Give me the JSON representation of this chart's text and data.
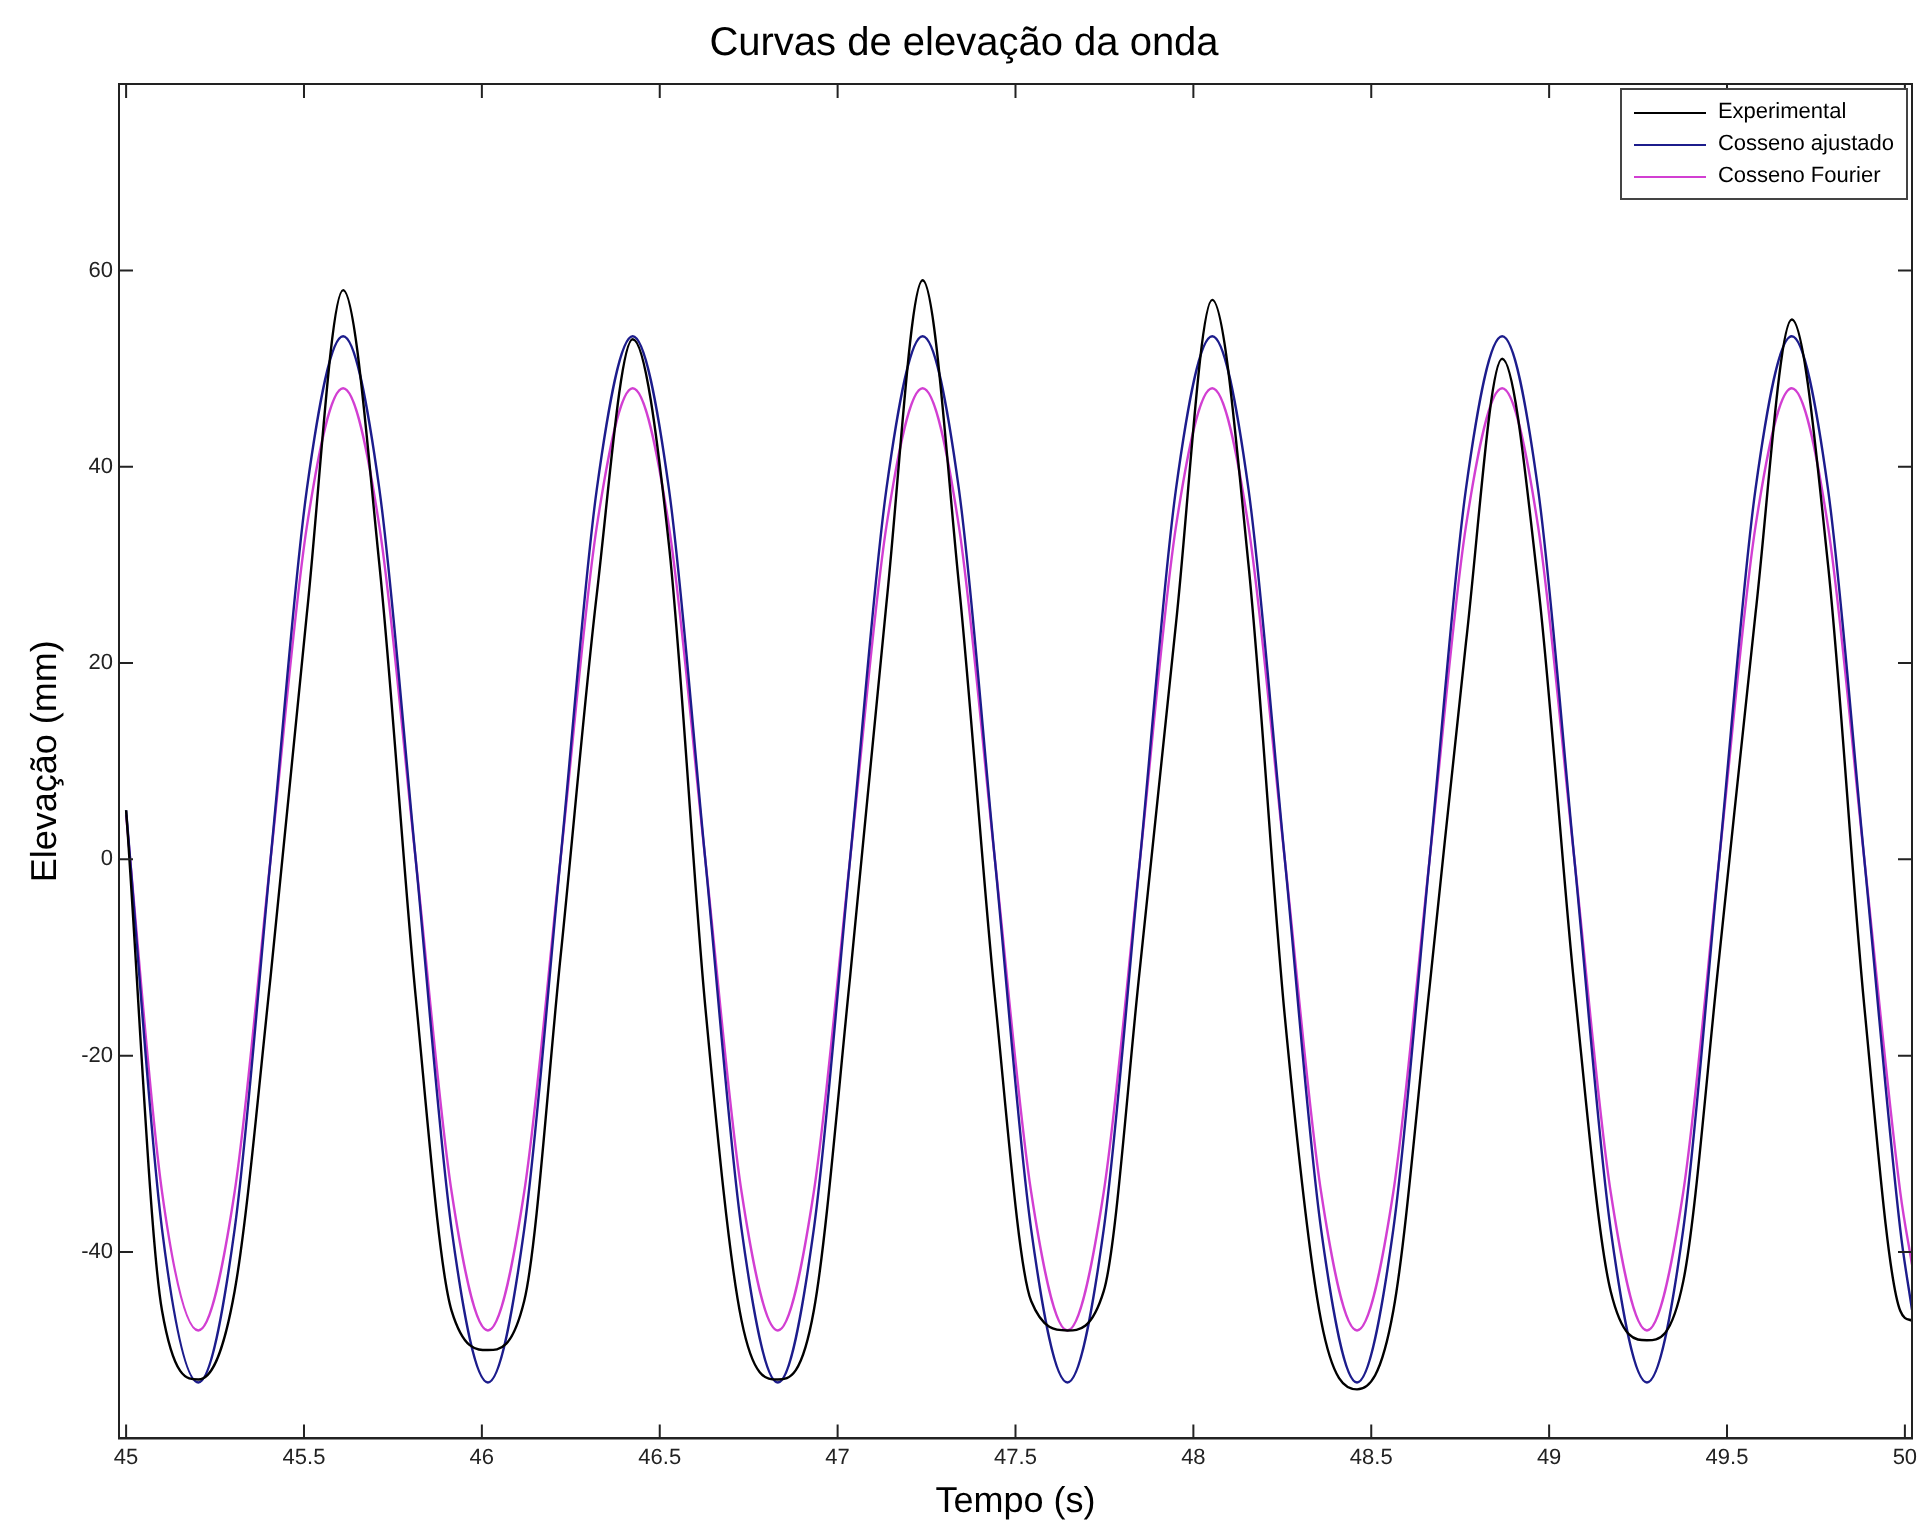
{
  "chart_data": {
    "type": "line",
    "title": "Curvas de elevação da onda",
    "xlabel": "Tempo (s)",
    "ylabel": "Elevação (mm)",
    "xlim": [
      44.98,
      50.02
    ],
    "ylim": [
      -59,
      79
    ],
    "xticks": [
      45,
      45.5,
      46,
      46.5,
      47,
      47.5,
      48,
      48.5,
      49,
      49.5,
      50
    ],
    "yticks": [
      -40,
      -20,
      0,
      20,
      40,
      60
    ],
    "grid": false,
    "legend": "top right",
    "marker": "none",
    "line_style": "solid",
    "series": [
      {
        "name": "Experimental",
        "color": "#000000",
        "x": [
          45.0,
          45.101,
          45.203,
          45.305,
          45.406,
          45.508,
          45.61,
          45.712,
          45.814,
          45.915,
          46.017,
          46.119,
          46.221,
          46.323,
          46.424,
          46.526,
          46.628,
          46.73,
          46.832,
          46.933,
          47.035,
          47.137,
          47.239,
          47.341,
          47.442,
          47.544,
          47.646,
          47.748,
          47.85,
          47.951,
          48.053,
          48.155,
          48.257,
          48.359,
          48.46,
          48.562,
          48.664,
          48.766,
          48.868,
          48.969,
          49.071,
          49.173,
          49.275,
          49.377,
          49.478,
          49.58,
          49.682,
          49.784,
          49.886,
          49.987,
          50.02
        ],
        "values": [
          5,
          -46,
          -53,
          -44,
          -12,
          25,
          58,
          30,
          -14,
          -46,
          -50,
          -45,
          -10,
          27,
          53,
          32,
          -15,
          -47,
          -53,
          -46,
          -12,
          26,
          59,
          28,
          -14,
          -45,
          -48,
          -44,
          -11,
          24,
          57,
          30,
          -16,
          -47,
          -54,
          -46,
          -13,
          22,
          51,
          28,
          -13,
          -44,
          -49,
          -43,
          -10,
          25,
          55,
          30,
          -15,
          -46,
          -47
        ]
      },
      {
        "name": "Cosseno ajustado",
        "color": "#1c1c8c",
        "x": [
          45.0,
          45.101,
          45.203,
          45.305,
          45.406,
          45.508,
          45.61,
          45.712,
          45.814,
          45.915,
          46.017,
          46.119,
          46.221,
          46.323,
          46.424,
          46.526,
          46.628,
          46.73,
          46.832,
          46.933,
          47.035,
          47.137,
          47.239,
          47.341,
          47.442,
          47.544,
          47.646,
          47.748,
          47.85,
          47.951,
          48.053,
          48.155,
          48.257,
          48.359,
          48.46,
          48.562,
          48.664,
          48.766,
          48.868,
          48.969,
          49.071,
          49.173,
          49.275,
          49.377,
          49.478,
          49.58,
          49.682,
          49.784,
          49.886,
          49.987,
          50.02
        ],
        "values": [
          5,
          -37.7,
          -53.3,
          -37.7,
          0,
          37.7,
          53.3,
          37.7,
          0,
          -37.7,
          -53.3,
          -37.7,
          0,
          37.7,
          53.3,
          37.7,
          0,
          -37.7,
          -53.3,
          -37.7,
          0,
          37.7,
          53.3,
          37.7,
          0,
          -37.7,
          -53.3,
          -37.7,
          0,
          37.7,
          53.3,
          37.7,
          0,
          -37.7,
          -53.3,
          -37.7,
          0,
          37.7,
          53.3,
          37.7,
          0,
          -37.7,
          -53.3,
          -37.7,
          0,
          37.7,
          53.3,
          37.7,
          0,
          -37.7,
          -45.9
        ]
      },
      {
        "name": "Cosseno Fourier",
        "color": "#d23fd2",
        "x": [
          45.0,
          45.101,
          45.203,
          45.305,
          45.406,
          45.508,
          45.61,
          45.712,
          45.814,
          45.915,
          46.017,
          46.119,
          46.221,
          46.323,
          46.424,
          46.526,
          46.628,
          46.73,
          46.832,
          46.933,
          47.035,
          47.137,
          47.239,
          47.341,
          47.442,
          47.544,
          47.646,
          47.748,
          47.85,
          47.951,
          48.053,
          48.155,
          48.257,
          48.359,
          48.46,
          48.562,
          48.664,
          48.766,
          48.868,
          48.969,
          49.071,
          49.173,
          49.275,
          49.377,
          49.478,
          49.58,
          49.682,
          49.784,
          49.886,
          49.987,
          50.02
        ],
        "values": [
          4.5,
          -33.9,
          -48,
          -33.9,
          0,
          33.9,
          48,
          33.9,
          0,
          -33.9,
          -48,
          -33.9,
          0,
          33.9,
          48,
          33.9,
          0,
          -33.9,
          -48,
          -33.9,
          0,
          33.9,
          48,
          33.9,
          0,
          -33.9,
          -48,
          -33.9,
          0,
          33.9,
          48,
          33.9,
          0,
          -33.9,
          -48,
          -33.9,
          0,
          33.9,
          48,
          33.9,
          0,
          -33.9,
          -48,
          -33.9,
          0,
          33.9,
          48,
          33.9,
          0,
          -33.9,
          -41.3
        ]
      }
    ]
  }
}
